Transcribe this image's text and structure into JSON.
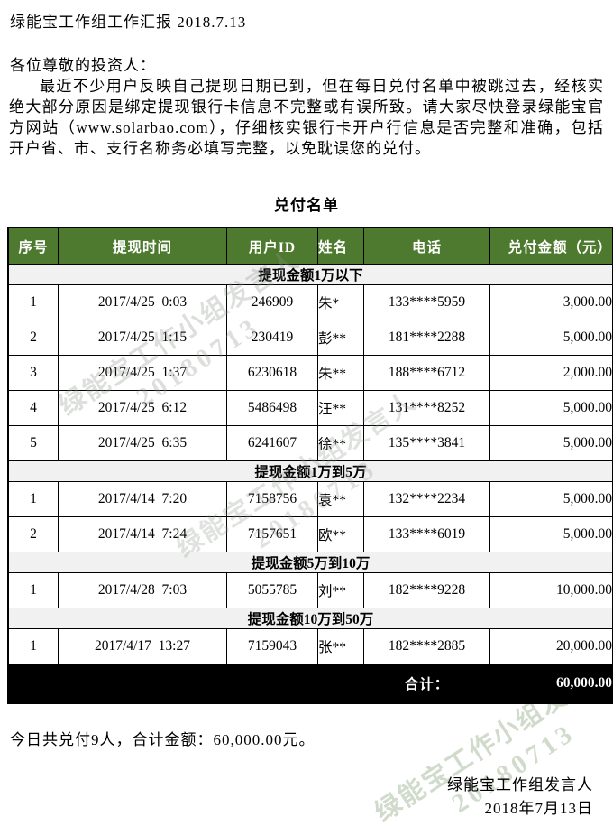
{
  "page": {
    "title": "绿能宝工作组工作汇报 2018.7.13",
    "salutation": "各位尊敬的投资人：",
    "body_paragraph": "最近不少用户反映自己提现日期已到，但在每日兑付名单中被跳过去，经核实绝大部分原因是绑定提现银行卡信息不完整或有误所致。请大家尽快登录绿能宝官方网站（www.solarbao.com），仔细核实银行卡开户行信息是否完整和准确，包括开户省、市、支行名称务必填写完整，以免耽误您的兑付。",
    "summary_line": "今日共兑付9人，合计金额：60,000.00元。",
    "signature_name": "绿能宝工作组发言人",
    "signature_date": "2018年7月13日"
  },
  "table": {
    "title": "兑付名单",
    "columns": [
      "序号",
      "提现时间",
      "用户ID",
      "姓名",
      "电话",
      "兑付金额（元）"
    ],
    "sections": [
      {
        "label": "提现金额1万以下",
        "rows": [
          [
            "1",
            "2017/4/25  0:03",
            "246909",
            "朱*",
            "133****5959",
            "3,000.00"
          ],
          [
            "2",
            "2017/4/25  1:15",
            "230419",
            "彭**",
            "181****2288",
            "5,000.00"
          ],
          [
            "3",
            "2017/4/25  1:37",
            "6230618",
            "朱**",
            "188****6712",
            "2,000.00"
          ],
          [
            "4",
            "2017/4/25  6:12",
            "5486498",
            "汪**",
            "131****8252",
            "5,000.00"
          ],
          [
            "5",
            "2017/4/25  6:35",
            "6241607",
            "徐**",
            "135****3841",
            "5,000.00"
          ]
        ]
      },
      {
        "label": "提现金额1万到5万",
        "rows": [
          [
            "1",
            "2017/4/14  7:20",
            "7158756",
            "袁**",
            "132****2234",
            "5,000.00"
          ],
          [
            "2",
            "2017/4/14  7:24",
            "7157651",
            "欧**",
            "133****6019",
            "5,000.00"
          ]
        ]
      },
      {
        "label": "提现金额5万到10万",
        "rows": [
          [
            "1",
            "2017/4/28  7:03",
            "5055785",
            "刘**",
            "182****9228",
            "10,000.00"
          ]
        ]
      },
      {
        "label": "提现金额10万到50万",
        "rows": [
          [
            "1",
            "2017/4/17  13:27",
            "7159043",
            "张**",
            "182****2885",
            "20,000.00"
          ]
        ]
      }
    ],
    "total_label": "合计：",
    "total_value": "60,000.00"
  },
  "watermark": {
    "line1": "绿能宝工作小组发言人",
    "line2": "20180713"
  },
  "colors": {
    "header_green": "#4e7a2f",
    "header_text": "#ffffff",
    "section_gray": "#f1f1f1",
    "total_black": "#000000",
    "total_text": "#ffffff",
    "watermark_tint": "#8c9687"
  }
}
